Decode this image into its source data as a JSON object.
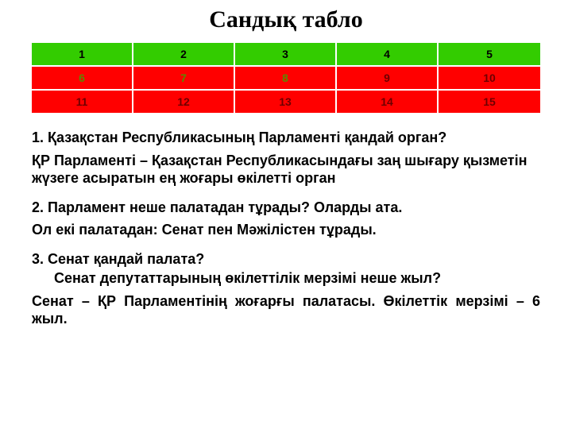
{
  "title": "Сандық табло",
  "table": {
    "columns": 5,
    "cells": [
      {
        "label": "1",
        "cls": "green"
      },
      {
        "label": "2",
        "cls": "green"
      },
      {
        "label": "3",
        "cls": "green"
      },
      {
        "label": "4",
        "cls": "green"
      },
      {
        "label": "5",
        "cls": "green"
      },
      {
        "label": "6",
        "cls": "red1"
      },
      {
        "label": "7",
        "cls": "red1"
      },
      {
        "label": "8",
        "cls": "red1"
      },
      {
        "label": "9",
        "cls": "red2"
      },
      {
        "label": "10",
        "cls": "red2"
      },
      {
        "label": "11",
        "cls": "red2"
      },
      {
        "label": "12",
        "cls": "red2"
      },
      {
        "label": "13",
        "cls": "red2"
      },
      {
        "label": "14",
        "cls": "red2"
      },
      {
        "label": "15",
        "cls": "red2"
      }
    ]
  },
  "qa": {
    "q1": "1. Қазақстан Республикасының Парламенті қандай орган?",
    "a1": "ҚР Парламенті – Қазақстан Республикасындағы заң шығару қызметін   жүзеге асыратын ең жоғары өкілетті орган",
    "q2": "2. Парламент неше палатадан тұрады? Оларды ата.",
    "a2": "Ол екі палатадан: Сенат пен Мәжілістен тұрады.",
    "q3": "3. Сенат қандай палата?",
    "q3b": "Сенат депутаттарының өкілеттілік мерзімі неше жыл?",
    "a3": "Сенат – ҚР Парламентінің жоғарғы палатасы. Өкілеттік мерзімі – 6 жыл."
  }
}
